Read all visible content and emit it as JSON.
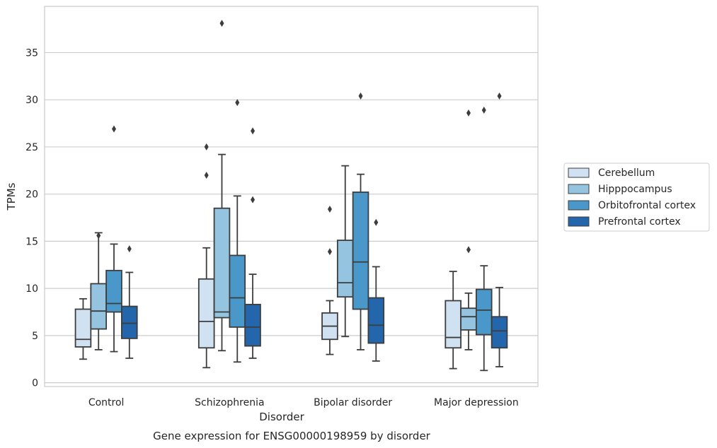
{
  "caption": "Gene expression for ENSG00000198959 by disorder",
  "chart_data": {
    "type": "box",
    "xlabel": "Disorder",
    "ylabel": "TPMs",
    "ylim": [
      -0.4,
      39.9
    ],
    "yticks": [
      0,
      5,
      10,
      15,
      20,
      25,
      30,
      35
    ],
    "grid": "horizontal",
    "legend_position": "right",
    "categories": [
      "Control",
      "Schizophrenia",
      "Bipolar disorder",
      "Major depression"
    ],
    "series": [
      {
        "name": "Cerebellum",
        "color": "#d0e1f2",
        "boxes": [
          {
            "min": 2.5,
            "q1": 3.8,
            "median": 4.6,
            "q3": 7.8,
            "max": 8.9,
            "outliers": []
          },
          {
            "min": 1.6,
            "q1": 3.7,
            "median": 6.5,
            "q3": 11.0,
            "max": 14.3,
            "outliers": [
              22.0,
              25.0
            ]
          },
          {
            "min": 3.0,
            "q1": 4.6,
            "median": 6.0,
            "q3": 7.4,
            "max": 8.7,
            "outliers": [
              13.9,
              18.4
            ]
          },
          {
            "min": 1.5,
            "q1": 3.7,
            "median": 4.8,
            "q3": 8.7,
            "max": 11.8,
            "outliers": []
          }
        ]
      },
      {
        "name": "Hipppocampus",
        "color": "#94c4df",
        "boxes": [
          {
            "min": 3.5,
            "q1": 5.7,
            "median": 7.6,
            "q3": 10.5,
            "max": 15.9,
            "outliers": [
              15.6
            ]
          },
          {
            "min": 3.4,
            "q1": 6.9,
            "median": 7.5,
            "q3": 18.5,
            "max": 24.2,
            "outliers": [
              38.1
            ]
          },
          {
            "min": 4.9,
            "q1": 9.1,
            "median": 10.6,
            "q3": 15.1,
            "max": 23.0,
            "outliers": []
          },
          {
            "min": 3.5,
            "q1": 5.6,
            "median": 7.0,
            "q3": 7.9,
            "max": 9.5,
            "outliers": [
              14.1,
              28.6
            ]
          }
        ]
      },
      {
        "name": "Orbitofrontal cortex",
        "color": "#4a98c9",
        "boxes": [
          {
            "min": 3.3,
            "q1": 7.5,
            "median": 8.4,
            "q3": 11.9,
            "max": 14.7,
            "outliers": [
              26.9
            ]
          },
          {
            "min": 2.2,
            "q1": 5.9,
            "median": 9.0,
            "q3": 13.5,
            "max": 19.8,
            "outliers": [
              29.7
            ]
          },
          {
            "min": 3.5,
            "q1": 7.8,
            "median": 12.8,
            "q3": 20.2,
            "max": 22.1,
            "outliers": [
              30.4
            ]
          },
          {
            "min": 1.3,
            "q1": 5.1,
            "median": 7.7,
            "q3": 9.9,
            "max": 12.4,
            "outliers": [
              28.9
            ]
          }
        ]
      },
      {
        "name": "Prefrontal cortex",
        "color": "#2366ac",
        "boxes": [
          {
            "min": 2.6,
            "q1": 4.7,
            "median": 6.3,
            "q3": 8.1,
            "max": 11.7,
            "outliers": [
              14.2
            ]
          },
          {
            "min": 2.6,
            "q1": 3.9,
            "median": 5.9,
            "q3": 8.3,
            "max": 11.5,
            "outliers": [
              19.4,
              26.7
            ]
          },
          {
            "min": 2.3,
            "q1": 4.2,
            "median": 6.1,
            "q3": 9.0,
            "max": 12.3,
            "outliers": [
              17.0
            ]
          },
          {
            "min": 1.7,
            "q1": 3.7,
            "median": 5.5,
            "q3": 7.0,
            "max": 10.1,
            "outliers": [
              30.4
            ]
          }
        ]
      }
    ]
  }
}
